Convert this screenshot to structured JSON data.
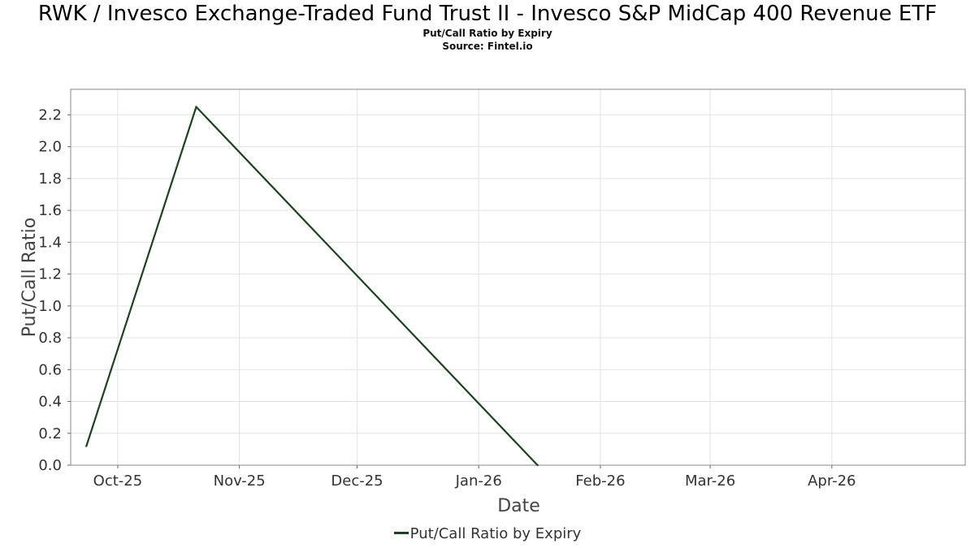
{
  "chart_data": {
    "type": "line",
    "title": "RWK / Invesco Exchange-Traded Fund Trust II - Invesco S&P MidCap 400 Revenue ETF",
    "subtitle_lines": [
      "Put/Call Ratio by Expiry",
      "Source: Fintel.io"
    ],
    "xlabel": "Date",
    "ylabel": "Put/Call Ratio",
    "xlim": [
      "2025-09-19",
      "2026-05-05"
    ],
    "ylim": [
      0,
      2.36
    ],
    "x_ticks": [
      {
        "date": "2025-10-01",
        "label": "Oct-25"
      },
      {
        "date": "2025-11-01",
        "label": "Nov-25"
      },
      {
        "date": "2025-12-01",
        "label": "Dec-25"
      },
      {
        "date": "2026-01-01",
        "label": "Jan-26"
      },
      {
        "date": "2026-02-01",
        "label": "Feb-26"
      },
      {
        "date": "2026-03-01",
        "label": "Mar-26"
      },
      {
        "date": "2026-04-01",
        "label": "Apr-26"
      }
    ],
    "y_ticks": [
      "0.0",
      "0.2",
      "0.4",
      "0.6",
      "0.8",
      "1.0",
      "1.2",
      "1.4",
      "1.6",
      "1.8",
      "2.0",
      "2.2"
    ],
    "grid": true,
    "legend_position": "bottom-center",
    "series": [
      {
        "name": "Put/Call Ratio by Expiry",
        "color": "#1c4220",
        "points": [
          {
            "x": "2025-09-23",
            "y": 0.12
          },
          {
            "x": "2025-10-21",
            "y": 2.25
          },
          {
            "x": "2026-01-16",
            "y": 0.0
          }
        ]
      }
    ]
  }
}
